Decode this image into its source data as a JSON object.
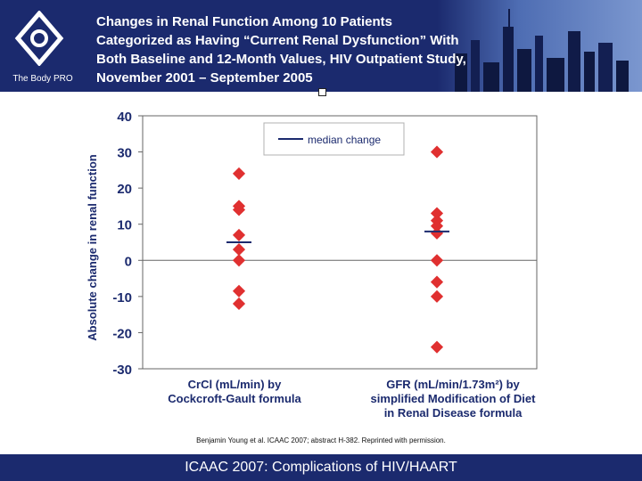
{
  "header": {
    "logo_text": "The Body PRO",
    "title": "Changes in Renal Function Among 10 Patients Categorized as Having “Current Renal Dysfunction” With Both Baseline and 12-Month Values, HIV Outpatient Study, November 2001 – September 2005"
  },
  "citation": "Benjamin Young et al. ICAAC 2007; abstract H-382. Reprinted with permission.",
  "footer": "ICAAC 2007: Complications of HIV/HAART",
  "colors": {
    "header_bg": "#1b2a6e",
    "marker": "#e03030",
    "median_line": "#1b2a6e"
  },
  "chart_data": {
    "type": "scatter",
    "ylabel": "Absolute change in renal function",
    "ylim": [
      -30,
      40
    ],
    "yticks": [
      40,
      30,
      20,
      10,
      0,
      -10,
      -20,
      -30
    ],
    "legend": {
      "label": "median change",
      "position": "top-center"
    },
    "categories": [
      {
        "line1": "CrCl (mL/min) by",
        "line2": "Cockcroft-Gault formula",
        "line3": ""
      },
      {
        "line1": "GFR (mL/min/1.73m²) by",
        "line2": "simplified Modification of Diet",
        "line3": "in Renal Disease formula"
      }
    ],
    "series": [
      {
        "values": [
          24,
          15,
          14,
          7,
          3,
          0,
          -8.5,
          -12
        ],
        "median": 5
      },
      {
        "values": [
          30,
          13,
          11,
          9.5,
          7.5,
          0,
          -6,
          -10,
          -24
        ],
        "median": 8
      }
    ]
  }
}
